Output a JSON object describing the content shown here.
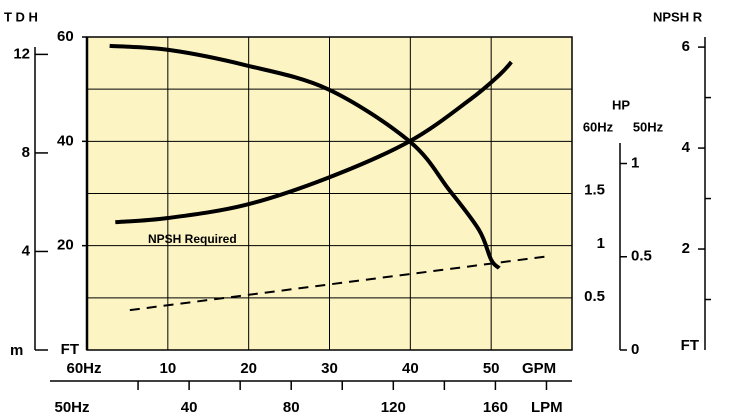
{
  "chart_data": {
    "type": "line",
    "title": "T D H",
    "xlim": [
      0,
      60
    ],
    "xticks": [
      10,
      20,
      30,
      40,
      50
    ],
    "xlabel": "GPM",
    "xlabel_left": "60Hz",
    "x2lim": [
      0,
      190
    ],
    "x2ticks": [
      40,
      80,
      120,
      160
    ],
    "x2minorticks": [
      20,
      60,
      100,
      140,
      180
    ],
    "x2label": "LPM",
    "x2label_left": "50Hz",
    "ylim": [
      0,
      60
    ],
    "yticks": [
      20,
      40,
      60
    ],
    "ylabel": "FT",
    "ygrid": [
      10,
      20,
      30,
      40,
      50
    ],
    "ymlim": [
      0,
      12.3
    ],
    "ymticks": [
      4,
      8,
      12
    ],
    "ymlabel": "m",
    "hplabel": "HP",
    "hp60lim": [
      0,
      1.95
    ],
    "hp60ticks": [
      0.5,
      1,
      1.5
    ],
    "hp60label": "60Hz",
    "hp50lim": [
      0,
      1.11
    ],
    "hp50ticks": [
      0,
      0.5,
      1
    ],
    "hp50label": "50Hz",
    "y2title": "NPSH R",
    "y2lim": [
      0,
      6.2
    ],
    "y2ticks": [
      2,
      4,
      6
    ],
    "y2minorticks": [
      1,
      3,
      5
    ],
    "y2label": "FT",
    "grid": true,
    "plot_color": "#fdf4c4",
    "series": [
      {
        "color": "#000000",
        "x": [
          2.8,
          10.2,
          19.6,
          29.8,
          39.9,
          44.8,
          48.5,
          50,
          51
        ],
        "values": [
          58.3,
          57.5,
          54.6,
          50,
          40,
          30.7,
          23,
          17.3,
          15.7
        ]
      },
      {
        "color": "#000000",
        "x": [
          3.5,
          10,
          19.6,
          29.8,
          39.9,
          47.3,
          51,
          52.5
        ],
        "values": [
          24.5,
          25.3,
          27.8,
          33,
          40,
          47.9,
          52.7,
          55.2
        ]
      },
      {
        "name": "NPSH Required",
        "color": "#000000",
        "axis": "y2",
        "dashed": true,
        "x": [
          5.3,
          57.2
        ],
        "values": [
          0.79,
          1.86
        ]
      }
    ]
  }
}
